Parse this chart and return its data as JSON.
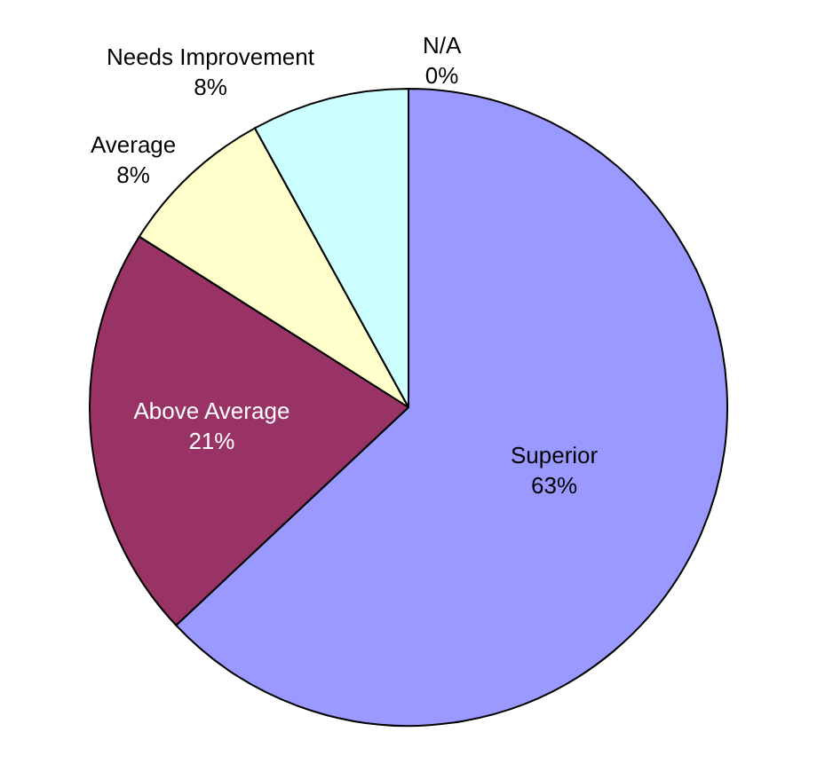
{
  "chart_data": {
    "type": "pie",
    "categories": [
      "Superior",
      "Above Average",
      "Average",
      "Needs Improvement",
      "N/A"
    ],
    "values": [
      63,
      21,
      8,
      8,
      0
    ],
    "value_labels": [
      "63%",
      "21%",
      "8%",
      "8%",
      "0%"
    ],
    "colors": [
      "#9999ff",
      "#993366",
      "#ffffcc",
      "#ccffff",
      "#ff99cc"
    ],
    "legend": false
  }
}
